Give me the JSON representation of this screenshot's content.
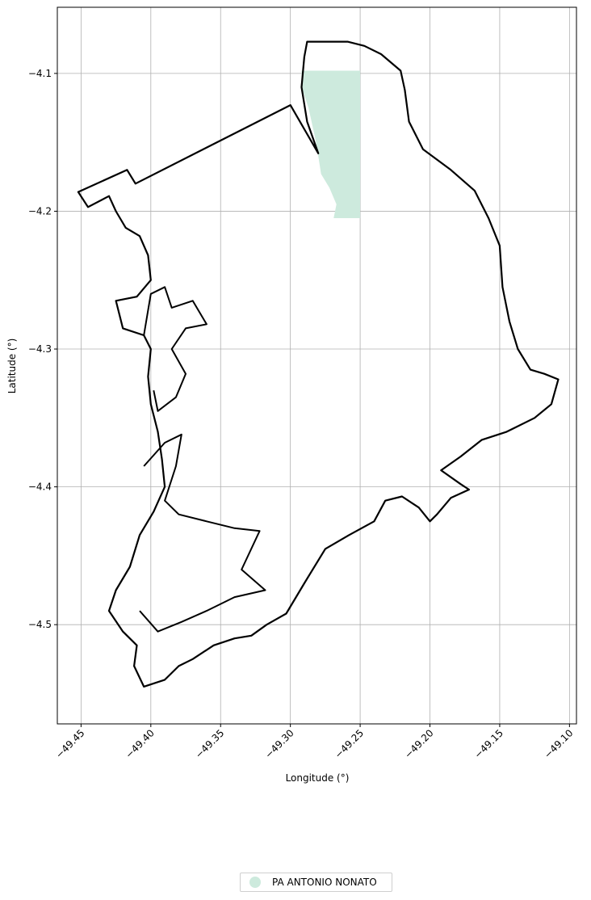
{
  "chart_data": {
    "type": "map",
    "title": "",
    "xlabel": "Longitude (°)",
    "ylabel": "Latitude (°)",
    "xlim": [
      -49.467,
      -49.095
    ],
    "ylim": [
      -4.572,
      -4.052
    ],
    "x_ticks": [
      -49.45,
      -49.4,
      -49.35,
      -49.3,
      -49.25,
      -49.2,
      -49.15,
      -49.1
    ],
    "x_tick_labels": [
      "−49.45",
      "−49.40",
      "−49.35",
      "−49.30",
      "−49.25",
      "−49.20",
      "−49.15",
      "−49.10"
    ],
    "y_ticks": [
      -4.1,
      -4.2,
      -4.3,
      -4.4,
      -4.5
    ],
    "y_tick_labels": [
      "−4.1",
      "−4.2",
      "−4.3",
      "−4.4",
      "−4.5"
    ],
    "grid": true,
    "legend_position": "bottom-center",
    "legend": [
      {
        "label": "PA ANTONIO NONATO",
        "color": "#cdeadd"
      }
    ],
    "boundary": {
      "stroke": "#000000",
      "points": [
        [
          -49.288,
          -4.077
        ],
        [
          -49.259,
          -4.077
        ],
        [
          -49.247,
          -4.08
        ],
        [
          -49.235,
          -4.086
        ],
        [
          -49.221,
          -4.098
        ],
        [
          -49.218,
          -4.112
        ],
        [
          -49.215,
          -4.135
        ],
        [
          -49.205,
          -4.155
        ],
        [
          -49.185,
          -4.17
        ],
        [
          -49.168,
          -4.185
        ],
        [
          -49.158,
          -4.205
        ],
        [
          -49.15,
          -4.225
        ],
        [
          -49.148,
          -4.255
        ],
        [
          -49.143,
          -4.28
        ],
        [
          -49.137,
          -4.3
        ],
        [
          -49.128,
          -4.315
        ],
        [
          -49.118,
          -4.318
        ],
        [
          -49.108,
          -4.322
        ],
        [
          -49.113,
          -4.34
        ],
        [
          -49.125,
          -4.35
        ],
        [
          -49.145,
          -4.36
        ],
        [
          -49.163,
          -4.366
        ],
        [
          -49.178,
          -4.378
        ],
        [
          -49.192,
          -4.388
        ],
        [
          -49.178,
          -4.398
        ],
        [
          -49.172,
          -4.402
        ],
        [
          -49.185,
          -4.408
        ],
        [
          -49.195,
          -4.42
        ],
        [
          -49.2,
          -4.425
        ],
        [
          -49.208,
          -4.415
        ],
        [
          -49.22,
          -4.407
        ],
        [
          -49.232,
          -4.41
        ],
        [
          -49.24,
          -4.425
        ],
        [
          -49.258,
          -4.435
        ],
        [
          -49.275,
          -4.445
        ],
        [
          -49.29,
          -4.47
        ],
        [
          -49.303,
          -4.492
        ],
        [
          -49.317,
          -4.5
        ],
        [
          -49.328,
          -4.508
        ],
        [
          -49.34,
          -4.51
        ],
        [
          -49.355,
          -4.515
        ],
        [
          -49.37,
          -4.525
        ],
        [
          -49.38,
          -4.53
        ],
        [
          -49.39,
          -4.54
        ],
        [
          -49.405,
          -4.545
        ],
        [
          -49.412,
          -4.53
        ],
        [
          -49.41,
          -4.515
        ],
        [
          -49.42,
          -4.505
        ],
        [
          -49.43,
          -4.49
        ],
        [
          -49.425,
          -4.475
        ],
        [
          -49.415,
          -4.458
        ],
        [
          -49.408,
          -4.435
        ],
        [
          -49.398,
          -4.418
        ],
        [
          -49.39,
          -4.4
        ],
        [
          -49.392,
          -4.38
        ],
        [
          -49.395,
          -4.36
        ],
        [
          -49.4,
          -4.34
        ],
        [
          -49.402,
          -4.32
        ],
        [
          -49.4,
          -4.3
        ],
        [
          -49.405,
          -4.29
        ],
        [
          -49.42,
          -4.285
        ],
        [
          -49.425,
          -4.265
        ],
        [
          -49.41,
          -4.262
        ],
        [
          -49.4,
          -4.25
        ],
        [
          -49.402,
          -4.232
        ],
        [
          -49.408,
          -4.218
        ],
        [
          -49.418,
          -4.212
        ],
        [
          -49.425,
          -4.2
        ],
        [
          -49.43,
          -4.189
        ],
        [
          -49.445,
          -4.197
        ],
        [
          -49.452,
          -4.186
        ],
        [
          -49.417,
          -4.17
        ],
        [
          -49.411,
          -4.18
        ],
        [
          -49.3,
          -4.123
        ],
        [
          -49.28,
          -4.158
        ],
        [
          -49.288,
          -4.135
        ],
        [
          -49.292,
          -4.11
        ],
        [
          -49.29,
          -4.088
        ],
        [
          -49.288,
          -4.077
        ]
      ]
    },
    "inner_boundary": {
      "stroke": "#000000",
      "points": [
        [
          -49.405,
          -4.29
        ],
        [
          -49.4,
          -4.26
        ],
        [
          -49.39,
          -4.255
        ],
        [
          -49.385,
          -4.27
        ],
        [
          -49.37,
          -4.265
        ],
        [
          -49.36,
          -4.282
        ],
        [
          -49.375,
          -4.285
        ],
        [
          -49.385,
          -4.3
        ],
        [
          -49.375,
          -4.318
        ],
        [
          -49.382,
          -4.335
        ],
        [
          -49.395,
          -4.345
        ],
        [
          -49.398,
          -4.33
        ]
      ]
    },
    "inner_boundary_2": {
      "stroke": "#000000",
      "points": [
        [
          -49.405,
          -4.385
        ],
        [
          -49.39,
          -4.368
        ],
        [
          -49.378,
          -4.362
        ],
        [
          -49.382,
          -4.385
        ],
        [
          -49.39,
          -4.41
        ],
        [
          -49.38,
          -4.42
        ],
        [
          -49.36,
          -4.425
        ],
        [
          -49.34,
          -4.43
        ],
        [
          -49.322,
          -4.432
        ],
        [
          -49.335,
          -4.46
        ],
        [
          -49.318,
          -4.475
        ],
        [
          -49.34,
          -4.48
        ],
        [
          -49.36,
          -4.49
        ],
        [
          -49.378,
          -4.498
        ],
        [
          -49.395,
          -4.505
        ],
        [
          -49.408,
          -4.49
        ]
      ]
    },
    "shaded_region": {
      "label": "PA ANTONIO NONATO",
      "fill": "#cdeadd",
      "points": [
        [
          -49.292,
          -4.098
        ],
        [
          -49.25,
          -4.098
        ],
        [
          -49.25,
          -4.205
        ],
        [
          -49.269,
          -4.205
        ],
        [
          -49.267,
          -4.195
        ],
        [
          -49.272,
          -4.183
        ],
        [
          -49.278,
          -4.173
        ],
        [
          -49.28,
          -4.16
        ],
        [
          -49.282,
          -4.148
        ],
        [
          -49.287,
          -4.125
        ],
        [
          -49.292,
          -4.11
        ]
      ]
    }
  }
}
